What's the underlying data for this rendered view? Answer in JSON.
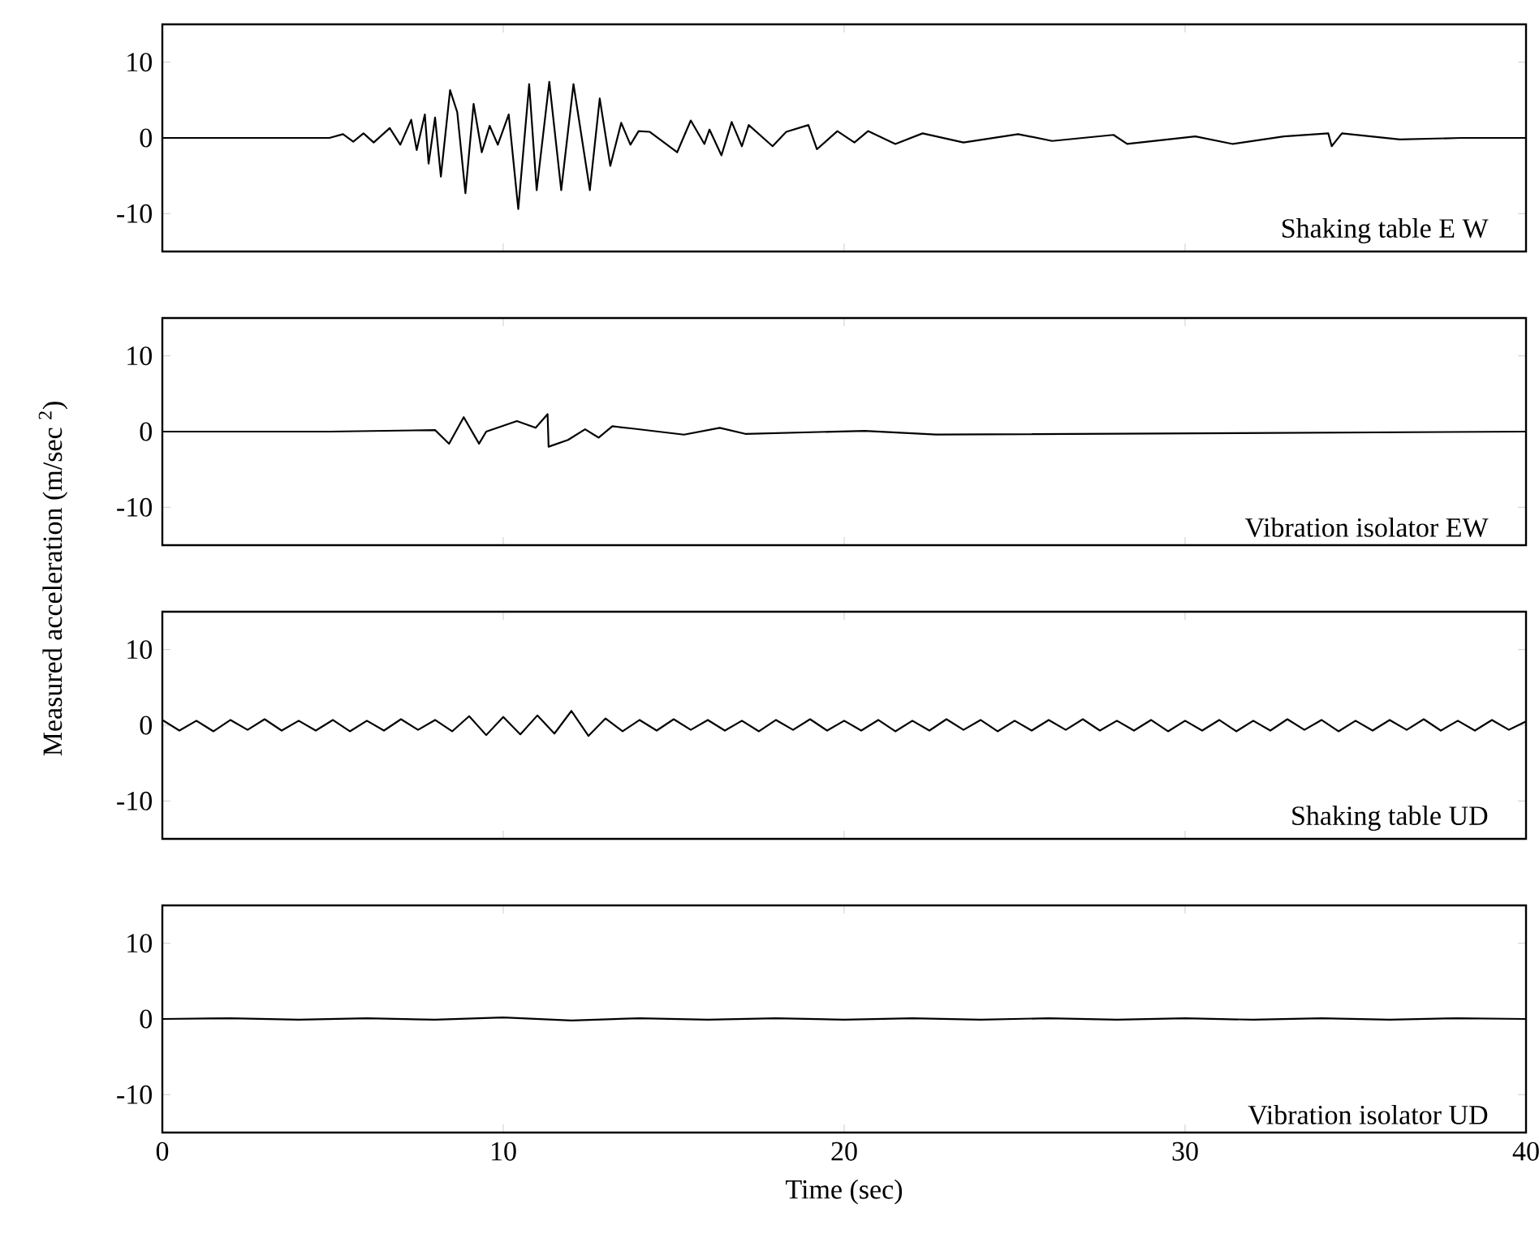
{
  "chart_data": [
    {
      "type": "line",
      "color": "#000000",
      "xlim": [
        0,
        40
      ],
      "xticks": [
        0,
        10,
        20,
        30,
        40
      ],
      "ylim": [
        -15,
        15
      ],
      "yticks": [
        -10,
        0,
        10
      ],
      "tick_labels": "y",
      "annotations": [
        "Shaking table E W"
      ],
      "x": [
        0,
        4.9,
        5.3,
        5.6,
        5.9,
        6.2,
        6.67,
        6.98,
        7.3,
        7.46,
        7.7,
        7.81,
        8.0,
        8.17,
        8.44,
        8.65,
        8.89,
        9.13,
        9.37,
        9.6,
        9.84,
        10.16,
        10.44,
        10.76,
        10.98,
        11.35,
        11.7,
        12.06,
        12.54,
        12.83,
        13.14,
        13.46,
        13.73,
        13.97,
        14.3,
        15.1,
        15.5,
        15.9,
        16.05,
        16.4,
        16.7,
        17.0,
        17.2,
        17.9,
        18.3,
        18.95,
        19.2,
        19.8,
        20.3,
        20.7,
        21.5,
        22.3,
        23.5,
        25.1,
        26.1,
        27.9,
        28.3,
        30.3,
        31.4,
        32.9,
        34.2,
        34.3,
        34.6,
        36.3,
        38.1,
        39.4,
        40
      ],
      "values": [
        0,
        0,
        0.5,
        -0.5,
        0.6,
        -0.6,
        1.3,
        -0.9,
        2.4,
        -1.6,
        3.1,
        -3.4,
        2.7,
        -5.1,
        6.3,
        3.4,
        -7.3,
        4.5,
        -1.9,
        1.6,
        -0.9,
        3.1,
        -9.4,
        7.1,
        -6.9,
        7.4,
        -6.9,
        7.1,
        -6.9,
        5.2,
        -3.7,
        2.0,
        -0.9,
        0.9,
        0.8,
        -1.9,
        2.3,
        -0.8,
        1.1,
        -2.3,
        2.1,
        -1.1,
        1.7,
        -1.1,
        0.8,
        1.7,
        -1.5,
        0.9,
        -0.6,
        0.9,
        -0.8,
        0.6,
        -0.6,
        0.5,
        -0.4,
        0.4,
        -0.8,
        0.2,
        -0.8,
        0.2,
        0.6,
        -1.1,
        0.6,
        -0.2,
        0,
        0,
        0
      ]
    },
    {
      "type": "line",
      "color": "#000000",
      "xlim": [
        0,
        40
      ],
      "xticks": [
        0,
        10,
        20,
        30,
        40
      ],
      "ylim": [
        -15,
        15
      ],
      "yticks": [
        -10,
        0,
        10
      ],
      "tick_labels": "y",
      "annotations": [
        "Vibration isolator EW"
      ],
      "ylabel": "Measured acceleration (m/sec $^{2}$)",
      "x": [
        0,
        4.9,
        8.0,
        8.41,
        8.84,
        9.29,
        9.5,
        10.4,
        10.95,
        11.3,
        11.33,
        11.9,
        12.4,
        12.8,
        13.2,
        13.8,
        15.3,
        16.35,
        17.1,
        20.6,
        22.7,
        40
      ],
      "values": [
        0,
        0,
        0.2,
        -1.6,
        1.9,
        -1.6,
        0,
        1.4,
        0.5,
        2.3,
        -2.0,
        -1.1,
        0.3,
        -0.8,
        0.7,
        0.4,
        -0.4,
        0.5,
        -0.3,
        0.1,
        -0.4,
        0
      ]
    },
    {
      "type": "line",
      "color": "#000000",
      "xlim": [
        0,
        40
      ],
      "xticks": [
        0,
        10,
        20,
        30,
        40
      ],
      "ylim": [
        -15,
        15
      ],
      "yticks": [
        -10,
        0,
        10
      ],
      "tick_labels": "y",
      "annotations": [
        "Shaking table UD"
      ],
      "x": [
        0,
        0.5,
        1,
        1.5,
        2,
        2.5,
        3,
        3.5,
        4,
        4.5,
        5,
        5.5,
        6,
        6.5,
        7,
        7.5,
        8,
        8.5,
        9,
        9.5,
        10,
        10.5,
        11,
        11.5,
        12,
        12.5,
        13,
        13.5,
        14,
        14.5,
        15,
        15.5,
        16,
        16.5,
        17,
        17.5,
        18,
        18.5,
        19,
        19.5,
        20,
        20.5,
        21,
        21.5,
        22,
        22.5,
        23,
        23.5,
        24,
        24.5,
        25,
        25.5,
        26,
        26.5,
        27,
        27.5,
        28,
        28.5,
        29,
        29.5,
        30,
        30.5,
        31,
        31.5,
        32,
        32.5,
        33,
        33.5,
        34,
        34.5,
        35,
        35.5,
        36,
        36.5,
        37,
        37.5,
        38,
        38.5,
        39,
        39.5,
        40
      ],
      "values": [
        0.7,
        -0.7,
        0.6,
        -0.8,
        0.7,
        -0.6,
        0.8,
        -0.7,
        0.6,
        -0.7,
        0.7,
        -0.8,
        0.6,
        -0.7,
        0.8,
        -0.6,
        0.7,
        -0.8,
        1.2,
        -1.3,
        1.1,
        -1.2,
        1.3,
        -1.1,
        1.9,
        -1.4,
        0.9,
        -0.8,
        0.7,
        -0.7,
        0.8,
        -0.6,
        0.7,
        -0.7,
        0.6,
        -0.8,
        0.7,
        -0.6,
        0.8,
        -0.7,
        0.6,
        -0.7,
        0.7,
        -0.8,
        0.6,
        -0.7,
        0.8,
        -0.6,
        0.7,
        -0.8,
        0.6,
        -0.7,
        0.7,
        -0.6,
        0.8,
        -0.7,
        0.6,
        -0.7,
        0.7,
        -0.8,
        0.6,
        -0.7,
        0.7,
        -0.8,
        0.6,
        -0.7,
        0.8,
        -0.6,
        0.7,
        -0.8,
        0.6,
        -0.7,
        0.7,
        -0.6,
        0.8,
        -0.7,
        0.6,
        -0.7,
        0.7,
        -0.6,
        0.5
      ]
    },
    {
      "type": "line",
      "color": "#000000",
      "xlim": [
        0,
        40
      ],
      "xticks": [
        0,
        10,
        20,
        30,
        40
      ],
      "ylim": [
        -15,
        15
      ],
      "yticks": [
        -10,
        0,
        10
      ],
      "annotations": [
        "Vibration isolator UD"
      ],
      "xlabel": "Time (sec)",
      "x": [
        0,
        2,
        4,
        6,
        8,
        10,
        12,
        14,
        16,
        18,
        20,
        22,
        24,
        26,
        28,
        30,
        32,
        34,
        36,
        38,
        40
      ],
      "values": [
        0,
        0.1,
        -0.1,
        0.1,
        -0.1,
        0.2,
        -0.2,
        0.1,
        -0.1,
        0.1,
        -0.1,
        0.1,
        -0.1,
        0.1,
        -0.1,
        0.1,
        -0.1,
        0.1,
        -0.1,
        0.1,
        0
      ]
    }
  ]
}
